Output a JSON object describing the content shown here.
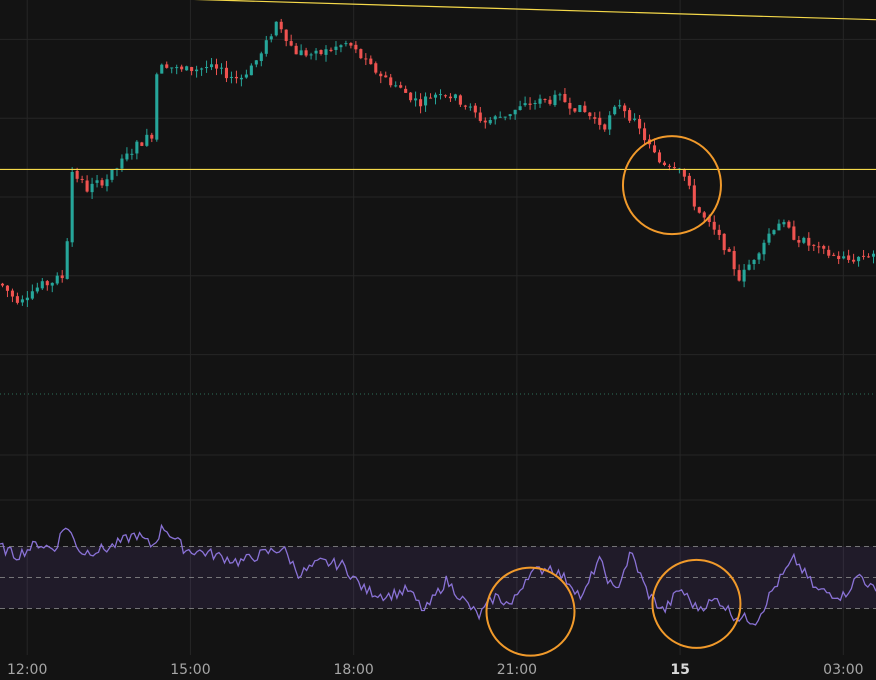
{
  "chart_data": {
    "type": "candlestick",
    "panels": [
      "price",
      "oscillator"
    ],
    "xlim": [
      11.5,
      27.6
    ],
    "x_ticks": [
      {
        "label": "12:00",
        "value": 12,
        "bold": false
      },
      {
        "label": "15:00",
        "value": 15,
        "bold": false
      },
      {
        "label": "18:00",
        "value": 18,
        "bold": false
      },
      {
        "label": "21:00",
        "value": 21,
        "bold": false
      },
      {
        "label": "15",
        "value": 24,
        "bold": true
      },
      {
        "label": "03:00",
        "value": 27,
        "bold": false
      }
    ],
    "price": {
      "ylim": [
        0,
        100
      ],
      "key_points": [
        {
          "x": 11.5,
          "y": 28
        },
        {
          "x": 11.8,
          "y": 24
        },
        {
          "x": 12.2,
          "y": 27
        },
        {
          "x": 12.7,
          "y": 30
        },
        {
          "x": 12.8,
          "y": 57
        },
        {
          "x": 13.1,
          "y": 52
        },
        {
          "x": 13.5,
          "y": 55
        },
        {
          "x": 14.0,
          "y": 63
        },
        {
          "x": 14.3,
          "y": 66
        },
        {
          "x": 14.4,
          "y": 85
        },
        {
          "x": 14.8,
          "y": 82
        },
        {
          "x": 15.3,
          "y": 83
        },
        {
          "x": 15.9,
          "y": 80
        },
        {
          "x": 16.3,
          "y": 86
        },
        {
          "x": 16.6,
          "y": 95
        },
        {
          "x": 16.9,
          "y": 87
        },
        {
          "x": 17.3,
          "y": 86
        },
        {
          "x": 17.9,
          "y": 89
        },
        {
          "x": 18.3,
          "y": 83
        },
        {
          "x": 18.8,
          "y": 78
        },
        {
          "x": 19.2,
          "y": 74
        },
        {
          "x": 19.6,
          "y": 77
        },
        {
          "x": 20.0,
          "y": 74
        },
        {
          "x": 20.4,
          "y": 69
        },
        {
          "x": 20.8,
          "y": 71
        },
        {
          "x": 21.3,
          "y": 74
        },
        {
          "x": 21.8,
          "y": 75
        },
        {
          "x": 22.3,
          "y": 71
        },
        {
          "x": 22.6,
          "y": 68
        },
        {
          "x": 22.9,
          "y": 74
        },
        {
          "x": 23.3,
          "y": 66
        },
        {
          "x": 23.6,
          "y": 59
        },
        {
          "x": 24.0,
          "y": 58
        },
        {
          "x": 24.3,
          "y": 47
        },
        {
          "x": 24.8,
          "y": 38
        },
        {
          "x": 25.1,
          "y": 29
        },
        {
          "x": 25.5,
          "y": 38
        },
        {
          "x": 25.8,
          "y": 44
        },
        {
          "x": 26.1,
          "y": 40
        },
        {
          "x": 26.6,
          "y": 36
        },
        {
          "x": 27.1,
          "y": 34
        },
        {
          "x": 27.6,
          "y": 36
        }
      ],
      "resistance_line": {
        "x1": 13.0,
        "y1": 101,
        "x2": 27.6,
        "y2": 95
      },
      "support_level": 57,
      "annotation_circles": [
        {
          "x": 23.85,
          "y": 53
        }
      ]
    },
    "oscillator": {
      "ylim": [
        0,
        100
      ],
      "upper_band": 70,
      "middle_line": 50,
      "lower_band": 30,
      "key_points": [
        {
          "x": 11.5,
          "y": 70
        },
        {
          "x": 11.8,
          "y": 64
        },
        {
          "x": 12.2,
          "y": 72
        },
        {
          "x": 12.5,
          "y": 68
        },
        {
          "x": 12.7,
          "y": 84
        },
        {
          "x": 13.0,
          "y": 66
        },
        {
          "x": 13.5,
          "y": 69
        },
        {
          "x": 14.0,
          "y": 78
        },
        {
          "x": 14.3,
          "y": 70
        },
        {
          "x": 14.5,
          "y": 83
        },
        {
          "x": 14.9,
          "y": 68
        },
        {
          "x": 15.3,
          "y": 66
        },
        {
          "x": 15.9,
          "y": 60
        },
        {
          "x": 16.3,
          "y": 65
        },
        {
          "x": 16.7,
          "y": 69
        },
        {
          "x": 17.0,
          "y": 52
        },
        {
          "x": 17.4,
          "y": 60
        },
        {
          "x": 17.8,
          "y": 58
        },
        {
          "x": 18.2,
          "y": 42
        },
        {
          "x": 18.6,
          "y": 38
        },
        {
          "x": 19.0,
          "y": 42
        },
        {
          "x": 19.3,
          "y": 28
        },
        {
          "x": 19.7,
          "y": 48
        },
        {
          "x": 20.0,
          "y": 36
        },
        {
          "x": 20.3,
          "y": 25
        },
        {
          "x": 20.6,
          "y": 38
        },
        {
          "x": 20.9,
          "y": 32
        },
        {
          "x": 21.2,
          "y": 52
        },
        {
          "x": 21.6,
          "y": 57
        },
        {
          "x": 22.0,
          "y": 46
        },
        {
          "x": 22.2,
          "y": 36
        },
        {
          "x": 22.5,
          "y": 62
        },
        {
          "x": 22.8,
          "y": 40
        },
        {
          "x": 23.1,
          "y": 66
        },
        {
          "x": 23.4,
          "y": 40
        },
        {
          "x": 23.7,
          "y": 28
        },
        {
          "x": 24.0,
          "y": 43
        },
        {
          "x": 24.3,
          "y": 30
        },
        {
          "x": 24.7,
          "y": 36
        },
        {
          "x": 25.0,
          "y": 25
        },
        {
          "x": 25.4,
          "y": 22
        },
        {
          "x": 25.7,
          "y": 42
        },
        {
          "x": 26.1,
          "y": 62
        },
        {
          "x": 26.5,
          "y": 42
        },
        {
          "x": 27.0,
          "y": 38
        },
        {
          "x": 27.3,
          "y": 52
        },
        {
          "x": 27.6,
          "y": 40
        }
      ],
      "annotation_circles": [
        {
          "x": 21.25,
          "y": 28
        },
        {
          "x": 24.3,
          "y": 33
        }
      ]
    }
  },
  "colors": {
    "background": "#131313",
    "grid": "#262626",
    "up_candle": "#26a69a",
    "down_candle": "#ef5350",
    "trend_line": "#f5d94a",
    "annotation": "#f19a2b",
    "oscillator_line": "#8a72d6",
    "oscillator_band": "#7e57c2",
    "dotted_separator": "#2e6f58"
  }
}
